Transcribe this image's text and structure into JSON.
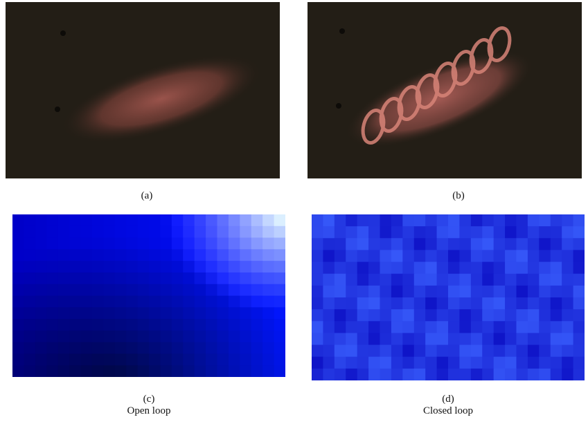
{
  "panels": [
    {
      "label": "(a)"
    },
    {
      "label": "(b)"
    },
    {
      "label": "(c)",
      "caption": "Open loop"
    },
    {
      "label": "(d)",
      "caption": "Closed loop"
    }
  ]
}
